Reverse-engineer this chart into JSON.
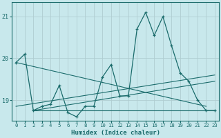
{
  "xlabel": "Humidex (Indice chaleur)",
  "xlim": [
    -0.5,
    23.5
  ],
  "ylim": [
    18.5,
    21.35
  ],
  "yticks": [
    19,
    20,
    21
  ],
  "xticks": [
    0,
    1,
    2,
    3,
    4,
    5,
    6,
    7,
    8,
    9,
    10,
    11,
    12,
    13,
    14,
    15,
    16,
    17,
    18,
    19,
    20,
    21,
    22,
    23
  ],
  "bg_color": "#c8e8ec",
  "line_color": "#1a6b6b",
  "grid_color": "#b0cdd1",
  "main_y": [
    19.9,
    20.1,
    18.75,
    18.85,
    18.9,
    19.35,
    18.7,
    18.6,
    18.85,
    18.85,
    19.55,
    19.85,
    19.1,
    19.1,
    20.7,
    21.1,
    20.55,
    21.0,
    20.3,
    19.65,
    19.45,
    19.0,
    18.75,
    18.75
  ],
  "trend_lines": [
    {
      "x": [
        0,
        22
      ],
      "y": [
        19.9,
        18.85
      ]
    },
    {
      "x": [
        2,
        23
      ],
      "y": [
        18.75,
        19.45
      ]
    },
    {
      "x": [
        2,
        23
      ],
      "y": [
        18.75,
        18.75
      ]
    },
    {
      "x": [
        0,
        23
      ],
      "y": [
        18.85,
        19.6
      ]
    }
  ]
}
